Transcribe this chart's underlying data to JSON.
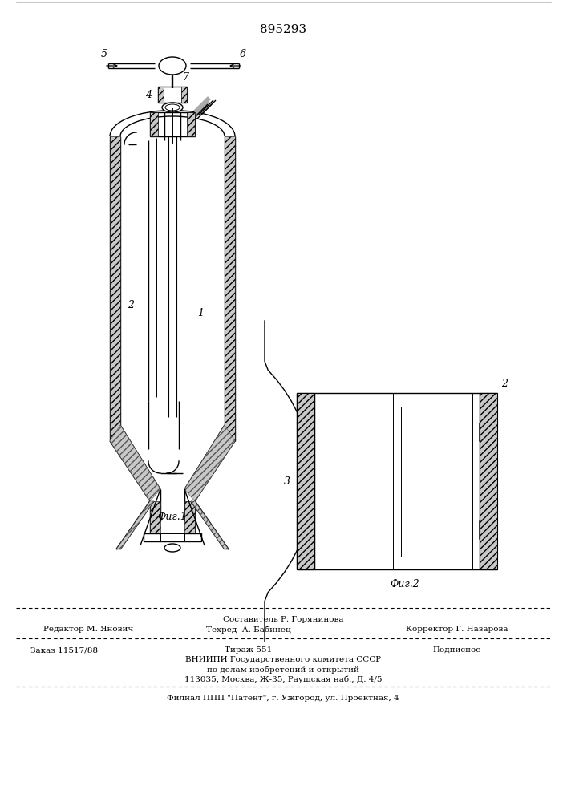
{
  "patent_number": "895293",
  "fig1_label": "Фиг.1",
  "fig2_label": "Фиг.2",
  "label1": "1",
  "label2": "2",
  "label3": "3",
  "label4": "4",
  "label5": "5",
  "label6": "6",
  "label7": "7",
  "editor_line": "Редактор М. Янович",
  "composer_line": "Составитель Р. Горянинова",
  "techred_line": "Техред  А. Бабинец",
  "corrector_line": "Корректор Г. Назарова",
  "order_line": "Заказ 11517/88",
  "tirazh_line": "Тираж 551",
  "podpisnoe_line": "Подписное",
  "vniipи_line": "ВНИИПИ Государственного комитета СССР",
  "po_delam_line": "по делам изобретений и открытий",
  "address_line": "113035, Москва, Ж-35, Раушская наб., Д. 4/5",
  "filial_line": "Филиал ППП \"Патент\", г. Ужгород, ул. Проектная, 4",
  "bg_color": "#ffffff",
  "line_color": "#000000"
}
